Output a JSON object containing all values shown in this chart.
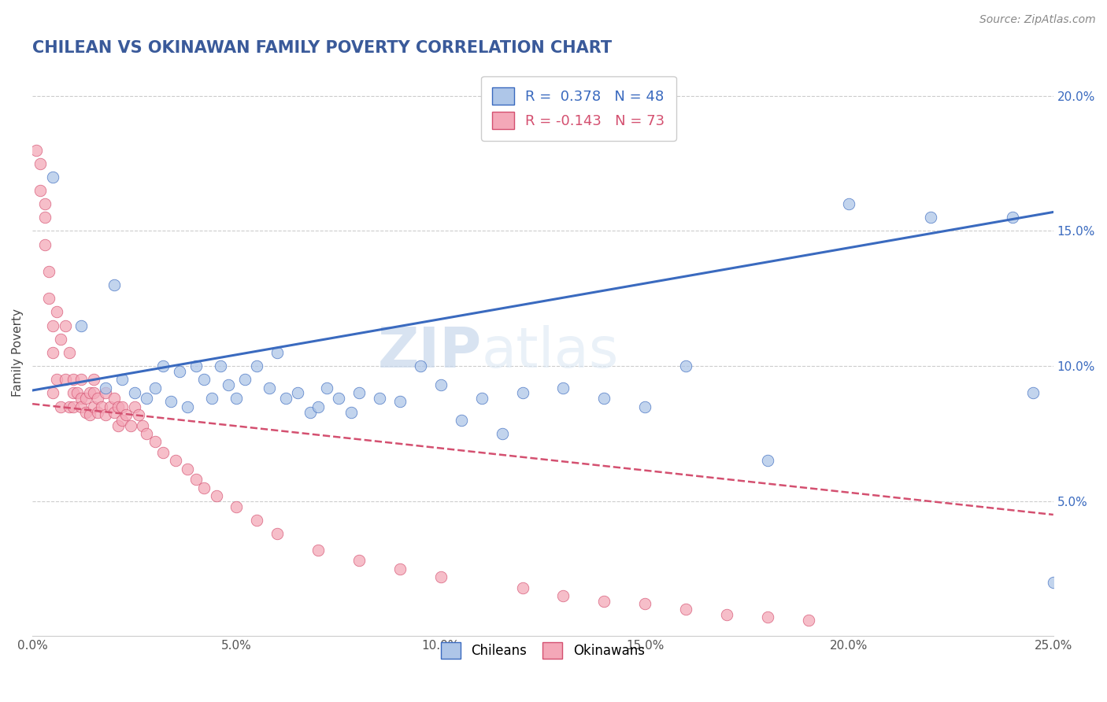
{
  "title": "CHILEAN VS OKINAWAN FAMILY POVERTY CORRELATION CHART",
  "source_text": "Source: ZipAtlas.com",
  "ylabel": "Family Poverty",
  "xlim": [
    0.0,
    0.25
  ],
  "ylim": [
    0.0,
    0.21
  ],
  "xticks": [
    0.0,
    0.05,
    0.1,
    0.15,
    0.2,
    0.25
  ],
  "xticklabels": [
    "0.0%",
    "5.0%",
    "10.0%",
    "15.0%",
    "20.0%",
    "25.0%"
  ],
  "yticks": [
    0.05,
    0.1,
    0.15,
    0.2
  ],
  "yticklabels": [
    "5.0%",
    "10.0%",
    "15.0%",
    "20.0%"
  ],
  "legend_r1": "R =  0.378",
  "legend_n1": "N = 48",
  "legend_r2": "R = -0.143",
  "legend_n2": "N = 73",
  "chilean_color": "#aec6e8",
  "okinawan_color": "#f4a8b8",
  "trend_chilean_color": "#3a6abf",
  "trend_okinawan_color": "#d45070",
  "watermark_zip": "ZIP",
  "watermark_atlas": "atlas",
  "title_color": "#3a5a9a",
  "title_fontsize": 15,
  "chileans_x": [
    0.005,
    0.012,
    0.018,
    0.02,
    0.022,
    0.025,
    0.028,
    0.03,
    0.032,
    0.034,
    0.036,
    0.038,
    0.04,
    0.042,
    0.044,
    0.046,
    0.048,
    0.05,
    0.052,
    0.055,
    0.058,
    0.06,
    0.062,
    0.065,
    0.068,
    0.07,
    0.072,
    0.075,
    0.078,
    0.08,
    0.085,
    0.09,
    0.095,
    0.1,
    0.105,
    0.11,
    0.115,
    0.12,
    0.13,
    0.14,
    0.15,
    0.16,
    0.18,
    0.2,
    0.22,
    0.24,
    0.245,
    0.25
  ],
  "chileans_y": [
    0.17,
    0.115,
    0.092,
    0.13,
    0.095,
    0.09,
    0.088,
    0.092,
    0.1,
    0.087,
    0.098,
    0.085,
    0.1,
    0.095,
    0.088,
    0.1,
    0.093,
    0.088,
    0.095,
    0.1,
    0.092,
    0.105,
    0.088,
    0.09,
    0.083,
    0.085,
    0.092,
    0.088,
    0.083,
    0.09,
    0.088,
    0.087,
    0.1,
    0.093,
    0.08,
    0.088,
    0.075,
    0.09,
    0.092,
    0.088,
    0.085,
    0.1,
    0.065,
    0.16,
    0.155,
    0.155,
    0.09,
    0.02
  ],
  "okinawans_x": [
    0.001,
    0.002,
    0.002,
    0.003,
    0.003,
    0.003,
    0.004,
    0.004,
    0.005,
    0.005,
    0.005,
    0.006,
    0.006,
    0.007,
    0.007,
    0.008,
    0.008,
    0.009,
    0.009,
    0.01,
    0.01,
    0.01,
    0.011,
    0.012,
    0.012,
    0.012,
    0.013,
    0.013,
    0.014,
    0.014,
    0.015,
    0.015,
    0.015,
    0.016,
    0.016,
    0.017,
    0.018,
    0.018,
    0.019,
    0.02,
    0.02,
    0.021,
    0.021,
    0.022,
    0.022,
    0.023,
    0.024,
    0.025,
    0.026,
    0.027,
    0.028,
    0.03,
    0.032,
    0.035,
    0.038,
    0.04,
    0.042,
    0.045,
    0.05,
    0.055,
    0.06,
    0.07,
    0.08,
    0.09,
    0.1,
    0.12,
    0.13,
    0.14,
    0.15,
    0.16,
    0.17,
    0.18,
    0.19
  ],
  "okinawans_y": [
    0.18,
    0.175,
    0.165,
    0.16,
    0.155,
    0.145,
    0.135,
    0.125,
    0.115,
    0.105,
    0.09,
    0.12,
    0.095,
    0.11,
    0.085,
    0.115,
    0.095,
    0.105,
    0.085,
    0.09,
    0.095,
    0.085,
    0.09,
    0.088,
    0.095,
    0.085,
    0.088,
    0.083,
    0.09,
    0.082,
    0.09,
    0.085,
    0.095,
    0.088,
    0.083,
    0.085,
    0.09,
    0.082,
    0.085,
    0.088,
    0.083,
    0.085,
    0.078,
    0.085,
    0.08,
    0.082,
    0.078,
    0.085,
    0.082,
    0.078,
    0.075,
    0.072,
    0.068,
    0.065,
    0.062,
    0.058,
    0.055,
    0.052,
    0.048,
    0.043,
    0.038,
    0.032,
    0.028,
    0.025,
    0.022,
    0.018,
    0.015,
    0.013,
    0.012,
    0.01,
    0.008,
    0.007,
    0.006
  ],
  "trend_c_x0": 0.0,
  "trend_c_x1": 0.25,
  "trend_c_y0": 0.091,
  "trend_c_y1": 0.157,
  "trend_o_x0": 0.0,
  "trend_o_x1": 0.25,
  "trend_o_y0": 0.086,
  "trend_o_y1": 0.045
}
